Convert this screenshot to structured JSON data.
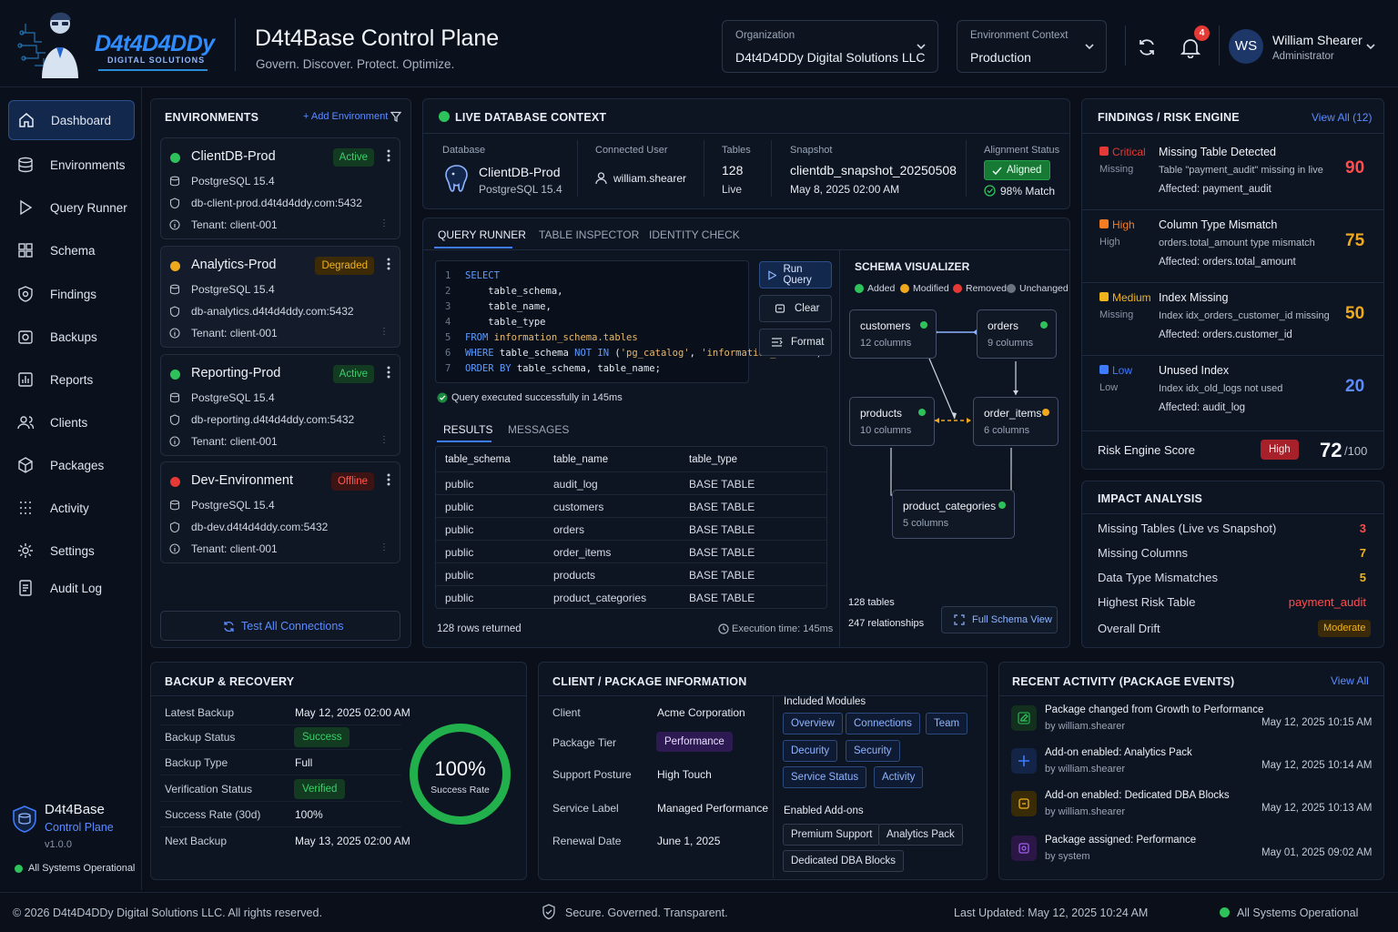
{
  "header": {
    "logo_text": "D4t4D4DDy",
    "logo_sub": "DIGITAL SOLUTIONS",
    "title": "D4t4Base Control Plane",
    "subtitle": "Govern. Discover. Protect. Optimize.",
    "org_label": "Organization",
    "org_value": "D4t4D4DDy Digital Solutions LLC",
    "env_label": "Environment Context",
    "env_value": "Production",
    "notif_count": "4",
    "avatar": "WS",
    "user_name": "William Shearer",
    "user_role": "Administrator"
  },
  "sidebar": {
    "items": [
      {
        "label": "Dashboard"
      },
      {
        "label": "Environments"
      },
      {
        "label": "Query Runner"
      },
      {
        "label": "Schema"
      },
      {
        "label": "Findings"
      },
      {
        "label": "Backups"
      },
      {
        "label": "Reports"
      },
      {
        "label": "Clients"
      },
      {
        "label": "Packages"
      },
      {
        "label": "Activity"
      },
      {
        "label": "Settings"
      },
      {
        "label": "Audit Log"
      }
    ],
    "brand_name": "D4t4Base",
    "brand_sub": "Control Plane",
    "version": "v1.0.0",
    "status": "All Systems Operational"
  },
  "environments": {
    "title": "ENVIRONMENTS",
    "add_label": "+ Add Environment",
    "test_all": "Test All Connections",
    "cards": [
      {
        "name": "ClientDB-Prod",
        "status": "Active",
        "engine": "PostgreSQL 15.4",
        "host": "db-client-prod.d4t4d4ddy.com:5432",
        "tenant": "Tenant: client-001",
        "color": "#2ec25a"
      },
      {
        "name": "Analytics-Prod",
        "status": "Degraded",
        "engine": "PostgreSQL 15.4",
        "host": "db-analytics.d4t4d4ddy.com:5432",
        "tenant": "Tenant: client-001",
        "color": "#f0a81c"
      },
      {
        "name": "Reporting-Prod",
        "status": "Active",
        "engine": "PostgreSQL 15.4",
        "host": "db-reporting.d4t4d4ddy.com:5432",
        "tenant": "Tenant: client-001",
        "color": "#2ec25a"
      },
      {
        "name": "Dev-Environment",
        "status": "Offline",
        "engine": "PostgreSQL 15.4",
        "host": "db-dev.d4t4d4ddy.com:5432",
        "tenant": "Tenant: client-001",
        "color": "#e53935"
      }
    ]
  },
  "live": {
    "title": "LIVE DATABASE CONTEXT",
    "db_label": "Database",
    "db_name": "ClientDB-Prod",
    "db_engine": "PostgreSQL 15.4",
    "user_label": "Connected User",
    "user": "william.shearer",
    "tables_label": "Tables",
    "tables": "128",
    "tables_sub": "Live",
    "snap_label": "Snapshot",
    "snap": "clientdb_snapshot_20250508",
    "snap_date": "May 8, 2025 02:00 AM",
    "align_label": "Alignment Status",
    "align": "Aligned",
    "match": "98% Match"
  },
  "tabs": [
    "QUERY RUNNER",
    "TABLE INSPECTOR",
    "IDENTITY CHECK"
  ],
  "query": {
    "lines": [
      {
        "n": "1",
        "t": "SELECT"
      },
      {
        "n": "2",
        "t": "    table_schema,"
      },
      {
        "n": "3",
        "t": "    table_name,"
      },
      {
        "n": "4",
        "t": "    table_type"
      },
      {
        "n": "5",
        "t": "FROM information_schema.tables"
      },
      {
        "n": "6",
        "t": "WHERE table_schema NOT IN ('pg_catalog', 'information_schema')"
      },
      {
        "n": "7",
        "t": "ORDER BY table_schema, table_name;"
      }
    ],
    "run": "Run Query",
    "clear": "Clear",
    "format": "Format",
    "success": "Query executed successfully in 145ms",
    "results_tab": "RESULTS",
    "messages_tab": "MESSAGES",
    "columns": [
      "table_schema",
      "table_name",
      "table_type"
    ],
    "rows": [
      [
        "public",
        "audit_log",
        "BASE TABLE"
      ],
      [
        "public",
        "customers",
        "BASE TABLE"
      ],
      [
        "public",
        "orders",
        "BASE TABLE"
      ],
      [
        "public",
        "order_items",
        "BASE TABLE"
      ],
      [
        "public",
        "products",
        "BASE TABLE"
      ],
      [
        "public",
        "product_categories",
        "BASE TABLE"
      ]
    ],
    "rows_returned": "128 rows returned",
    "exec_time": "Execution time: 145ms"
  },
  "schema": {
    "title": "SCHEMA VISUALIZER",
    "legend": [
      {
        "label": "Added",
        "color": "#2ec25a"
      },
      {
        "label": "Modified",
        "color": "#f0a81c"
      },
      {
        "label": "Removed",
        "color": "#e53935"
      },
      {
        "label": "Unchanged",
        "color": "#6b7280"
      }
    ],
    "nodes": [
      {
        "name": "customers",
        "cols": "12 columns"
      },
      {
        "name": "orders",
        "cols": "9 columns"
      },
      {
        "name": "products",
        "cols": "10 columns"
      },
      {
        "name": "order_items",
        "cols": "6 columns"
      },
      {
        "name": "product_categories",
        "cols": "5 columns"
      }
    ],
    "tables": "128 tables",
    "relationships": "247 relationships",
    "full_view": "Full Schema View"
  },
  "findings": {
    "title": "FINDINGS / RISK ENGINE",
    "view_all": "View All (12)",
    "items": [
      {
        "sev": "Critical",
        "sev2": "Missing",
        "title": "Missing Table Detected",
        "desc": "Table \"payment_audit\" missing in live",
        "aff": "Affected: payment_audit",
        "score": "90",
        "color": "#e53935"
      },
      {
        "sev": "High",
        "sev2": "High",
        "title": "Column Type Mismatch",
        "desc": "orders.total_amount type mismatch",
        "aff": "Affected: orders.total_amount",
        "score": "75",
        "color": "#f57c22"
      },
      {
        "sev": "Medium",
        "sev2": "Missing",
        "title": "Index Missing",
        "desc": "Index idx_orders_customer_id missing",
        "aff": "Affected: orders.customer_id",
        "score": "50",
        "color": "#f0b41c"
      },
      {
        "sev": "Low",
        "sev2": "Low",
        "title": "Unused Index",
        "desc": "Index idx_old_logs not used",
        "aff": "Affected: audit_log",
        "score": "20",
        "color": "#3d7bff"
      }
    ],
    "risk_label": "Risk Engine Score",
    "risk_level": "High",
    "risk_score": "72",
    "risk_max": "/100"
  },
  "impact": {
    "title": "IMPACT ANALYSIS",
    "rows": [
      {
        "label": "Missing Tables (Live vs Snapshot)",
        "value": "3",
        "color": "#ff4d4d"
      },
      {
        "label": "Missing Columns",
        "value": "7",
        "color": "#f0b41c"
      },
      {
        "label": "Data Type Mismatches",
        "value": "5",
        "color": "#f0b41c"
      },
      {
        "label": "Highest Risk Table",
        "value": "payment_audit",
        "color": "#ff4d4d"
      }
    ],
    "drift_label": "Overall Drift",
    "drift_value": "Moderate"
  },
  "backup": {
    "title": "BACKUP & RECOVERY",
    "rows": [
      {
        "label": "Latest Backup",
        "value": "May 12, 2025 02:00 AM"
      },
      {
        "label": "Backup Status",
        "value": "Success"
      },
      {
        "label": "Backup Type",
        "value": "Full"
      },
      {
        "label": "Verification Status",
        "value": "Verified"
      },
      {
        "label": "Success Rate (30d)",
        "value": "100%"
      },
      {
        "label": "Next Backup",
        "value": "May 13, 2025 02:00 AM"
      }
    ],
    "ring_value": "100%",
    "ring_label": "Success Rate",
    "ring_fraction": 1.0
  },
  "client": {
    "title": "CLIENT / PACKAGE INFORMATION",
    "rows": [
      {
        "label": "Client",
        "value": "Acme Corporation"
      },
      {
        "label": "Package Tier",
        "value": "Performance"
      },
      {
        "label": "Support Posture",
        "value": "High Touch"
      },
      {
        "label": "Service Label",
        "value": "Managed Performance"
      },
      {
        "label": "Renewal Date",
        "value": "June 1, 2025"
      }
    ],
    "modules_title": "Included Modules",
    "modules": [
      "Overview",
      "Connections",
      "Team",
      "Decurity",
      "Security",
      "Service Status",
      "Activity"
    ],
    "addons_title": "Enabled Add-ons",
    "addons": [
      "Premium Support",
      "Analytics Pack",
      "Dedicated DBA Blocks"
    ]
  },
  "activity": {
    "title": "RECENT ACTIVITY (PACKAGE EVENTS)",
    "view_all": "View All",
    "items": [
      {
        "title": "Package changed from Growth to Performance",
        "by": "by william.shearer",
        "time": "May 12, 2025 10:15 AM",
        "color": "#2ec25a",
        "icon": "edit-icon"
      },
      {
        "title": "Add-on enabled: Analytics Pack",
        "by": "by william.shearer",
        "time": "May 12, 2025 10:14 AM",
        "color": "#3d7bff",
        "icon": "plus-icon"
      },
      {
        "title": "Add-on enabled: Dedicated DBA Blocks",
        "by": "by william.shearer",
        "time": "May 12, 2025 10:13 AM",
        "color": "#f0b41c",
        "icon": "box-icon"
      },
      {
        "title": "Package assigned: Performance",
        "by": "by system",
        "time": "May 01, 2025 09:02 AM",
        "color": "#a05cf0",
        "icon": "package-icon"
      }
    ]
  },
  "footer": {
    "copyright": "© 2026 D4t4D4DDy Digital Solutions LLC. All rights reserved.",
    "tagline": "Secure. Governed. Transparent.",
    "updated": "Last Updated: May 12, 2025 10:24 AM",
    "status": "All Systems Operational"
  }
}
